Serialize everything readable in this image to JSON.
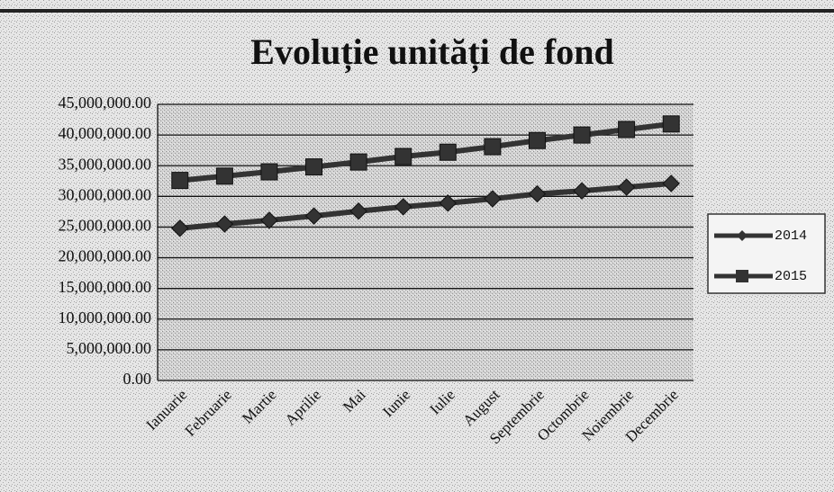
{
  "chart_data": {
    "type": "line",
    "title": "Evoluție unități de fond",
    "categories": [
      "Ianuarie",
      "Februarie",
      "Martie",
      "Aprilie",
      "Mai",
      "Iunie",
      "Iulie",
      "August",
      "Septembrie",
      "Octombrie",
      "Noiembrie",
      "Decembrie"
    ],
    "series": [
      {
        "name": "2014",
        "color": "#333333",
        "marker": "diamond",
        "values": [
          24800000,
          25500000,
          26100000,
          26800000,
          27600000,
          28300000,
          28900000,
          29600000,
          30400000,
          30900000,
          31500000,
          32100000
        ]
      },
      {
        "name": "2015",
        "color": "#333333",
        "marker": "square",
        "values": [
          32600000,
          33300000,
          34000000,
          34800000,
          35600000,
          36500000,
          37200000,
          38100000,
          39100000,
          40000000,
          40900000,
          41800000
        ]
      }
    ],
    "ylim": [
      0,
      45000000
    ],
    "yticks": [
      {
        "value": 0,
        "label": "0.00"
      },
      {
        "value": 5000000,
        "label": "5,000,000.00"
      },
      {
        "value": 10000000,
        "label": "10,000,000.00"
      },
      {
        "value": 15000000,
        "label": "15,000,000.00"
      },
      {
        "value": 20000000,
        "label": "20,000,000.00"
      },
      {
        "value": 25000000,
        "label": "25,000,000.00"
      },
      {
        "value": 30000000,
        "label": "30,000,000.00"
      },
      {
        "value": 35000000,
        "label": "35,000,000.00"
      },
      {
        "value": 40000000,
        "label": "40,000,000.00"
      },
      {
        "value": 45000000,
        "label": "45,000,000.00"
      }
    ],
    "grid": true,
    "legend": "right"
  }
}
